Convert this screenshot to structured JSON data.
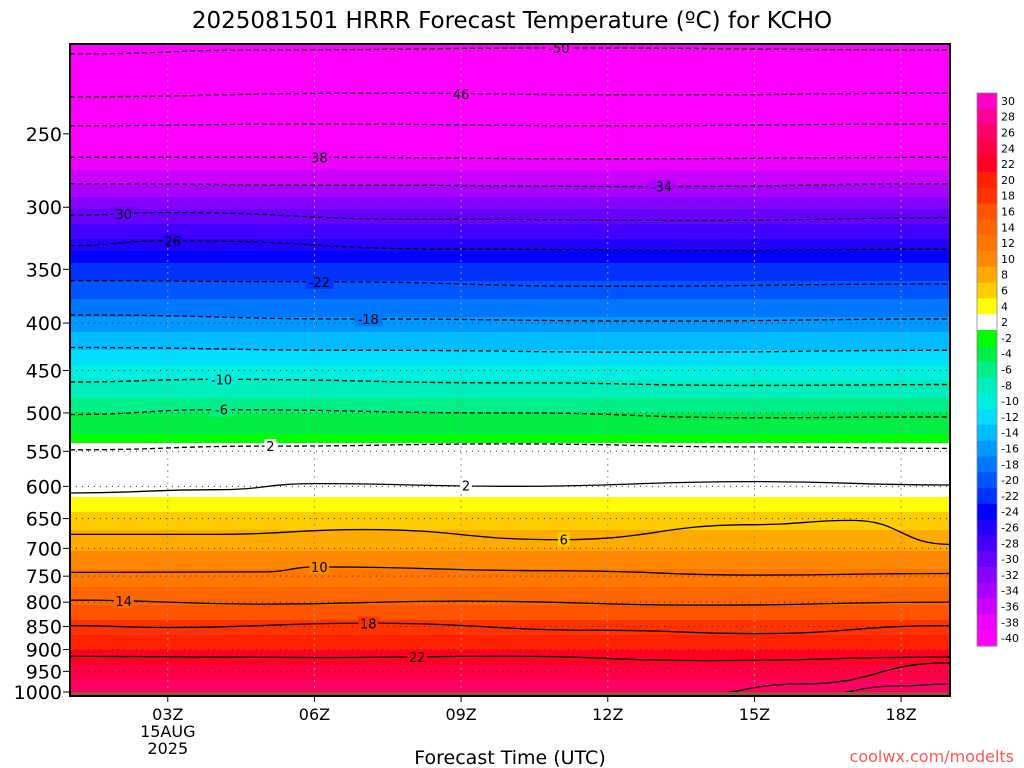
{
  "title": "2025081501 HRRR Forecast Temperature (ºC) for KCHO",
  "watermark": "coolwx.com/modelts",
  "chart_data": {
    "type": "heatmap",
    "title": "2025081501 HRRR Forecast Temperature (ºC) for KCHO",
    "xlabel": "Forecast Time (UTC)",
    "ylabel": "",
    "x_unit": "hours since 2025-08-15 01Z",
    "xlim": [
      0,
      18
    ],
    "x_ticks": [
      {
        "hour": 2,
        "label": "03Z"
      },
      {
        "hour": 5,
        "label": "06Z"
      },
      {
        "hour": 8,
        "label": "09Z"
      },
      {
        "hour": 11,
        "label": "12Z"
      },
      {
        "hour": 14,
        "label": "15Z"
      },
      {
        "hour": 17,
        "label": "18Z"
      }
    ],
    "x_date_label": [
      "15AUG",
      "2025"
    ],
    "y_scale": "log-pressure (hPa), inverted",
    "ylim": [
      1010,
      200
    ],
    "y_ticks": [
      250,
      300,
      350,
      400,
      450,
      500,
      550,
      600,
      650,
      700,
      750,
      800,
      850,
      900,
      950,
      1000
    ],
    "colorbar": {
      "labels": [
        30,
        28,
        26,
        24,
        22,
        20,
        18,
        16,
        14,
        12,
        10,
        8,
        6,
        4,
        2,
        -2,
        -4,
        -6,
        -8,
        -10,
        -12,
        -14,
        -16,
        -18,
        -20,
        -22,
        -24,
        -26,
        -28,
        -30,
        -32,
        -34,
        -36,
        -38,
        -40
      ],
      "colors": [
        "#ff00cc",
        "#ff0099",
        "#ff0066",
        "#ff0044",
        "#ff0022",
        "#ff2200",
        "#ff3300",
        "#ff5500",
        "#ff6600",
        "#ff7700",
        "#ff8800",
        "#ffaa00",
        "#ffcc00",
        "#ffff00",
        "#ffffff",
        "#00ff00",
        "#00ee44",
        "#00ee88",
        "#00eebb",
        "#00eedd",
        "#00ddff",
        "#00bbff",
        "#0099ff",
        "#0077ff",
        "#0055ff",
        "#0033ff",
        "#0000ff",
        "#2200ff",
        "#4400ff",
        "#6600ff",
        "#8800ff",
        "#aa00ff",
        "#cc00ff",
        "#ee00ff",
        "#ff00ff"
      ]
    },
    "surface_color": "#a0522d",
    "profile": {
      "pressure_hPa": [
        200,
        250,
        300,
        350,
        400,
        450,
        500,
        550,
        600,
        650,
        700,
        750,
        800,
        850,
        900,
        950,
        1000
      ],
      "temperature_C": [
        -52,
        -42,
        -31,
        -22,
        -16,
        -10,
        -5,
        -1,
        2,
        6,
        9,
        12,
        15,
        18,
        21,
        24,
        27
      ]
    },
    "contours": [
      {
        "value": -50,
        "style": "dashed",
        "points": [
          [
            0,
            205
          ],
          [
            4,
            203
          ],
          [
            10,
            202
          ],
          [
            18,
            203
          ]
        ],
        "label": {
          "hour": 10,
          "text": "-50"
        }
      },
      {
        "value": -46,
        "style": "dashed",
        "points": [
          [
            0,
            228
          ],
          [
            6,
            226
          ],
          [
            12,
            227
          ],
          [
            18,
            226
          ]
        ],
        "label": {
          "hour": 8,
          "text": "46"
        }
      },
      {
        "value": -42,
        "style": "dashed",
        "points": [
          [
            0,
            245
          ],
          [
            5,
            244
          ],
          [
            11,
            245
          ],
          [
            18,
            244
          ]
        ],
        "label": null
      },
      {
        "value": -38,
        "style": "dashed",
        "points": [
          [
            0,
            265
          ],
          [
            5,
            265
          ],
          [
            11,
            266
          ],
          [
            18,
            265
          ]
        ],
        "label": {
          "hour": 5.1,
          "text": "38"
        }
      },
      {
        "value": -34,
        "style": "dashed",
        "points": [
          [
            0,
            283
          ],
          [
            6,
            284
          ],
          [
            12,
            285
          ],
          [
            18,
            283
          ]
        ],
        "label": {
          "hour": 12.1,
          "text": "-34"
        }
      },
      {
        "value": -30,
        "style": "dashed",
        "points": [
          [
            0,
            306
          ],
          [
            2,
            304
          ],
          [
            7,
            309
          ],
          [
            13,
            310
          ],
          [
            18,
            308
          ]
        ],
        "label": {
          "hour": 1.1,
          "text": "30"
        }
      },
      {
        "value": -26,
        "style": "dashed",
        "points": [
          [
            0,
            330
          ],
          [
            2,
            326
          ],
          [
            8,
            333
          ],
          [
            13,
            334
          ],
          [
            18,
            333
          ]
        ],
        "label": {
          "hour": 2.1,
          "text": "26"
        }
      },
      {
        "value": -22,
        "style": "dashed",
        "points": [
          [
            0,
            360
          ],
          [
            5,
            361
          ],
          [
            11,
            365
          ],
          [
            18,
            363
          ]
        ],
        "label": {
          "hour": 5.1,
          "text": "-22"
        }
      },
      {
        "value": -18,
        "style": "dashed",
        "points": [
          [
            0,
            392
          ],
          [
            6,
            396
          ],
          [
            12,
            398
          ],
          [
            18,
            396
          ]
        ],
        "label": {
          "hour": 6.1,
          "text": "-18"
        }
      },
      {
        "value": -14,
        "style": "dashed",
        "points": [
          [
            0,
            425
          ],
          [
            6,
            428
          ],
          [
            12,
            430
          ],
          [
            18,
            428
          ]
        ],
        "label": null
      },
      {
        "value": -10,
        "style": "dashed",
        "points": [
          [
            0,
            463
          ],
          [
            3,
            460
          ],
          [
            9,
            464
          ],
          [
            14,
            467
          ],
          [
            18,
            466
          ]
        ],
        "label": {
          "hour": 3.1,
          "text": "-10"
        }
      },
      {
        "value": -6,
        "style": "dashed",
        "points": [
          [
            0,
            502
          ],
          [
            3,
            496
          ],
          [
            9,
            500
          ],
          [
            14,
            506
          ],
          [
            18,
            505
          ]
        ],
        "label": {
          "hour": 3.1,
          "text": "-6"
        }
      },
      {
        "value": -2,
        "style": "dashed",
        "points": [
          [
            0,
            548
          ],
          [
            4,
            543
          ],
          [
            9,
            540
          ],
          [
            14,
            544
          ],
          [
            18,
            546
          ]
        ],
        "label": {
          "hour": 4.1,
          "text": "2"
        }
      },
      {
        "value": 2,
        "style": "solid",
        "points": [
          [
            0,
            610
          ],
          [
            3,
            605
          ],
          [
            5,
            596
          ],
          [
            9,
            600
          ],
          [
            14,
            593
          ],
          [
            18,
            598
          ]
        ],
        "label": {
          "hour": 8.1,
          "text": "2"
        }
      },
      {
        "value": 6,
        "style": "solid",
        "points": [
          [
            0,
            676
          ],
          [
            3,
            676
          ],
          [
            6,
            668
          ],
          [
            10,
            685
          ],
          [
            14,
            660
          ],
          [
            16,
            653
          ],
          [
            18,
            693
          ]
        ],
        "label": {
          "hour": 10.1,
          "text": "6"
        }
      },
      {
        "value": 10,
        "style": "solid",
        "points": [
          [
            0,
            743
          ],
          [
            4,
            742
          ],
          [
            5,
            733
          ],
          [
            10,
            740
          ],
          [
            14,
            748
          ],
          [
            18,
            745
          ]
        ],
        "label": {
          "hour": 5.1,
          "text": "10"
        }
      },
      {
        "value": 14,
        "style": "solid",
        "points": [
          [
            0,
            796
          ],
          [
            4,
            804
          ],
          [
            8,
            798
          ],
          [
            13,
            806
          ],
          [
            18,
            800
          ]
        ],
        "label": {
          "hour": 1.1,
          "text": "14"
        }
      },
      {
        "value": 18,
        "style": "solid",
        "points": [
          [
            0,
            848
          ],
          [
            2,
            852
          ],
          [
            6,
            843
          ],
          [
            11,
            858
          ],
          [
            14,
            865
          ],
          [
            18,
            848
          ]
        ],
        "label": {
          "hour": 6.1,
          "text": "18"
        }
      },
      {
        "value": 22,
        "style": "solid",
        "points": [
          [
            0,
            915
          ],
          [
            5,
            918
          ],
          [
            9,
            915
          ],
          [
            13,
            925
          ],
          [
            18,
            917
          ]
        ],
        "label": {
          "hour": 7.1,
          "text": "22"
        }
      },
      {
        "value": 26,
        "style": "solid",
        "points": [
          [
            12.5,
            1010
          ],
          [
            15,
            980
          ],
          [
            18,
            930
          ]
        ],
        "label": null
      },
      {
        "value": 26,
        "style": "solid",
        "points": [
          [
            15,
            1010
          ],
          [
            17,
            985
          ],
          [
            18,
            980
          ]
        ],
        "label": null
      }
    ],
    "dotted_isobars": [
      300,
      350,
      400,
      450,
      500,
      550,
      600,
      650,
      700,
      750,
      800,
      850,
      900,
      950
    ]
  }
}
